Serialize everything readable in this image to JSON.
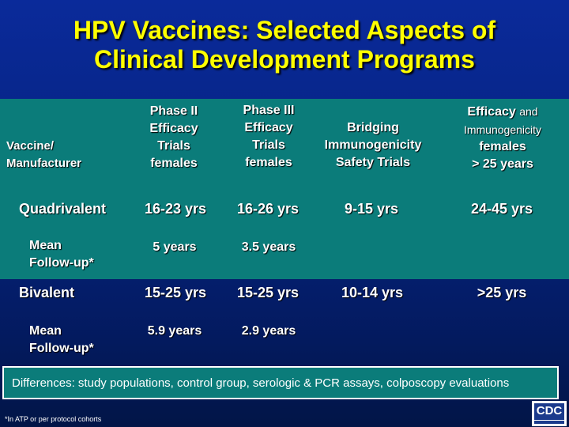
{
  "title": {
    "line1": "HPV Vaccines: Selected Aspects of",
    "line2": "Clinical Development Programs"
  },
  "columns": {
    "vaccine": {
      "line1": "Vaccine/",
      "line2": "Manufacturer"
    },
    "phase2": {
      "line1": "Phase II",
      "line2": "Efficacy",
      "line3": "Trials",
      "line4": "females"
    },
    "phase3": {
      "line1": "Phase III",
      "line2": "Efficacy",
      "line3": "Trials",
      "line4": "females"
    },
    "bridging": {
      "line1": "Bridging",
      "line2": "Immunogenicity",
      "line3": "Safety Trials"
    },
    "efficacy": {
      "line1a": "Efficacy",
      "line1b": "and",
      "line2": "Immunogenicity",
      "line3": "females",
      "line4": "> 25 years"
    }
  },
  "rows": {
    "quadrivalent": {
      "label": "Quadrivalent",
      "phase2": "16-23 yrs",
      "phase3": "16-26 yrs",
      "bridging": "9-15 yrs",
      "efficacy": "24-45 yrs"
    },
    "quad_followup": {
      "label1": "Mean",
      "label2": "Follow-up*",
      "phase2": "5 years",
      "phase3": "3.5 years"
    },
    "bivalent": {
      "label": "Bivalent",
      "phase2": "15-25 yrs",
      "phase3": "15-25 yrs",
      "bridging": "10-14 yrs",
      "efficacy": ">25 yrs"
    },
    "biv_followup": {
      "label1": "Mean",
      "label2": "Follow-up*",
      "phase2": "5.9 years",
      "phase3": "2.9 years"
    }
  },
  "note": "Differences: study populations, control group, serologic & PCR assays, colposcopy evaluations",
  "footnote": "*In ATP or per protocol cohorts",
  "logo": {
    "text": "CDC"
  }
}
